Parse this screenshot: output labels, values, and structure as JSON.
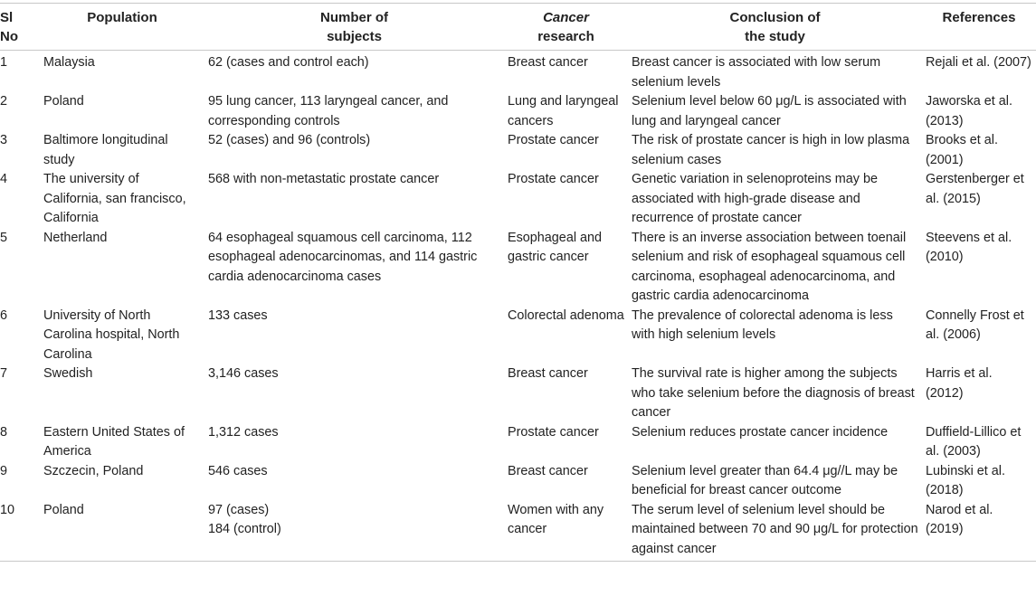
{
  "table": {
    "headers": {
      "sl": "Sl\nNo",
      "population": "Population",
      "subjects": "Number of\nsubjects",
      "cancer_em": "Cancer",
      "research": "research",
      "conclusion": "Conclusion of\nthe study",
      "references": "References"
    },
    "rows": [
      {
        "sl": "1",
        "population": "Malaysia",
        "subjects": "62 (cases and control each)",
        "cancer": "Breast cancer",
        "conclusion": "Breast cancer is associated with low serum selenium levels",
        "reference": "Rejali et al. (2007)"
      },
      {
        "sl": "2",
        "population": "Poland",
        "subjects": "95 lung cancer, 113 laryngeal cancer, and corresponding controls",
        "cancer": "Lung and laryngeal cancers",
        "conclusion": "Selenium level below 60 μg/L is associated with lung and laryngeal cancer",
        "reference": "Jaworska et al. (2013)"
      },
      {
        "sl": "3",
        "population": "Baltimore longitudinal study",
        "subjects": "52 (cases) and 96 (controls)",
        "cancer": "Prostate cancer",
        "conclusion": "The risk of prostate cancer is high in low plasma selenium cases",
        "reference": "Brooks et al. (2001)"
      },
      {
        "sl": "4",
        "population": "The university of California, san francisco, California",
        "subjects": "568 with non-metastatic prostate cancer",
        "cancer": "Prostate cancer",
        "conclusion": "Genetic variation in selenoproteins may be associated with high-grade disease and recurrence of prostate cancer",
        "reference": "Gerstenberger et al. (2015)"
      },
      {
        "sl": "5",
        "population": "Netherland",
        "subjects": "64 esophageal squamous cell carcinoma, 112 esophageal adenocarcinomas, and 114 gastric cardia adenocarcinoma cases",
        "cancer": "Esophageal and gastric cancer",
        "conclusion": "There is an inverse association between toenail selenium and risk of esophageal squamous cell carcinoma, esophageal adenocarcinoma, and gastric cardia adenocarcinoma",
        "reference": "Steevens et al. (2010)"
      },
      {
        "sl": "6",
        "population": "University of North Carolina hospital, North Carolina",
        "subjects": "133 cases",
        "cancer": "Colorectal adenoma",
        "conclusion": "The prevalence of colorectal adenoma is less with high selenium levels",
        "reference": "Connelly Frost et al. (2006)"
      },
      {
        "sl": "7",
        "population": "Swedish",
        "subjects": "3,146 cases",
        "cancer": "Breast cancer",
        "conclusion": "The survival rate is higher among the subjects who take selenium before the diagnosis of breast cancer",
        "reference": "Harris et al. (2012)"
      },
      {
        "sl": "8",
        "population": "Eastern United States of America",
        "subjects": "1,312 cases",
        "cancer": "Prostate cancer",
        "conclusion": "Selenium reduces prostate cancer incidence",
        "reference": "Duffield-Lillico et al. (2003)"
      },
      {
        "sl": "9",
        "population": "Szczecin, Poland",
        "subjects": "546 cases",
        "cancer": "Breast cancer",
        "conclusion": "Selenium level greater than 64.4 μg//L may be beneficial for breast cancer outcome",
        "reference": "Lubinski et al. (2018)"
      },
      {
        "sl": "10",
        "population": "Poland",
        "subjects": "97 (cases)\n184 (control)",
        "cancer": "Women with any cancer",
        "conclusion": "The serum level of selenium level should be maintained between 70 and 90 μg/L for protection against cancer",
        "reference": "Narod et al. (2019)"
      }
    ]
  }
}
